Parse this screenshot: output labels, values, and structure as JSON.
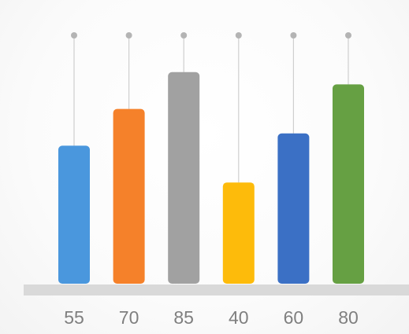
{
  "chart_data": {
    "type": "bar",
    "title": "",
    "xlabel": "",
    "ylabel": "",
    "categories": [
      "55",
      "70",
      "85",
      "40",
      "60",
      "80"
    ],
    "values": [
      55,
      70,
      85,
      40,
      60,
      80
    ],
    "colors": [
      "#4a97dd",
      "#f5812a",
      "#a1a1a1",
      "#fdbb0b",
      "#3b70c5",
      "#66a043"
    ],
    "ylim": [
      0,
      100
    ],
    "grid": false,
    "legend": "none",
    "stems": true,
    "stem_color": "#cfcfcf",
    "baseline_color": "#d9d9d9",
    "label_color": "#7f7f7f"
  }
}
